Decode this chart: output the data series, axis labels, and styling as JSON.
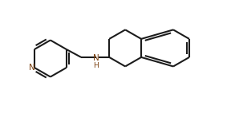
{
  "background": "#ffffff",
  "bond_color": "#1c1c1c",
  "N_color": "#7a4010",
  "lw": 1.5,
  "figsize": [
    2.88,
    1.47
  ],
  "dpi": 100,
  "xlim": [
    -0.5,
    10.5
  ],
  "ylim": [
    -0.3,
    5.3
  ]
}
